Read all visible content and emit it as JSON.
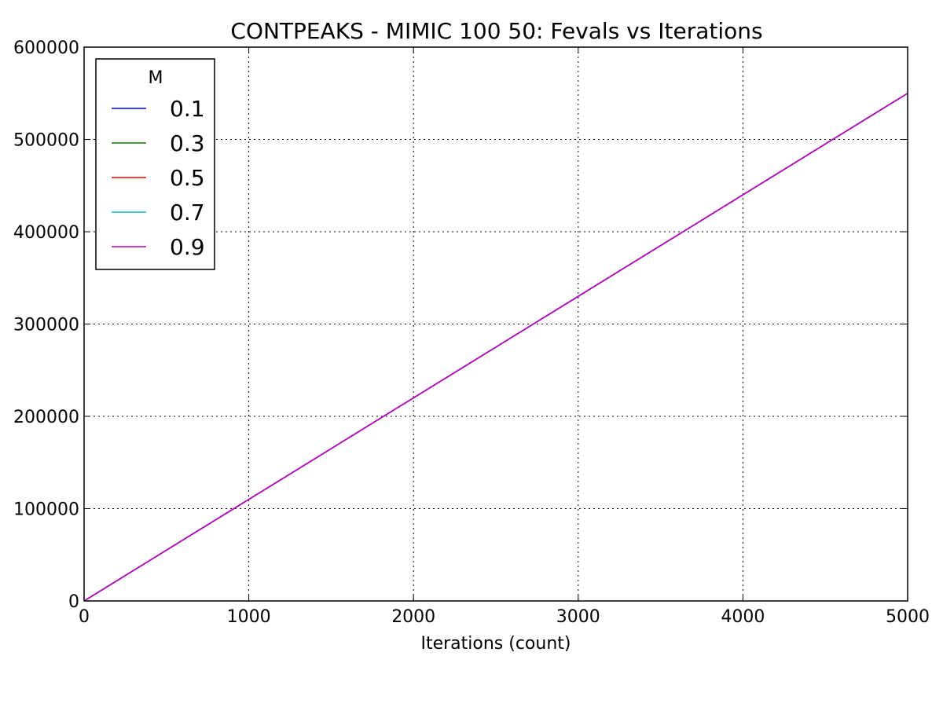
{
  "chart_data": {
    "type": "line",
    "title": "CONTPEAKS - MIMIC 100 50: Fevals vs Iterations",
    "xlabel": "Iterations (count)",
    "ylabel": "",
    "xlim": [
      0,
      5000
    ],
    "ylim": [
      0,
      600000
    ],
    "xticks": [
      0,
      1000,
      2000,
      3000,
      4000,
      5000
    ],
    "yticks": [
      0,
      100000,
      200000,
      300000,
      400000,
      500000,
      600000
    ],
    "grid": true,
    "legend": {
      "title": "M",
      "placement": "top-left"
    },
    "series": [
      {
        "name": "0.1",
        "color": "#0000ff",
        "x": [
          0,
          5000
        ],
        "y": [
          0,
          550000
        ]
      },
      {
        "name": "0.3",
        "color": "#008000",
        "x": [
          0,
          5000
        ],
        "y": [
          0,
          550000
        ]
      },
      {
        "name": "0.5",
        "color": "#ff0000",
        "x": [
          0,
          5000
        ],
        "y": [
          0,
          550000
        ]
      },
      {
        "name": "0.7",
        "color": "#00bfbf",
        "x": [
          0,
          5000
        ],
        "y": [
          0,
          550000
        ]
      },
      {
        "name": "0.9",
        "color": "#bf00bf",
        "x": [
          0,
          5000
        ],
        "y": [
          0,
          550000
        ]
      }
    ]
  }
}
